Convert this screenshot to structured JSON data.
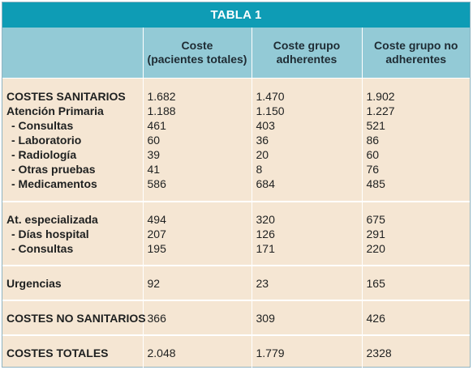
{
  "table": {
    "title": "TABLA 1",
    "headers": [
      "",
      "Coste\n(pacientes totales)",
      "Coste grupo\nadherentes",
      "Coste grupo no\nadherentes"
    ],
    "groups": [
      {
        "labels": [
          "COSTES SANITARIOS",
          "Atención Primaria",
          " - Consultas",
          " - Laboratorio",
          " - Radiología",
          " - Otras pruebas",
          " - Medicamentos"
        ],
        "col1": [
          "1.682",
          "1.188",
          "461",
          "60",
          "39",
          "41",
          "586"
        ],
        "col2": [
          "1.470",
          "1.150",
          "403",
          "36",
          "20",
          "8",
          "684"
        ],
        "col3": [
          "1.902",
          "1.227",
          "521",
          "86",
          "60",
          "76",
          "485"
        ]
      },
      {
        "labels": [
          "At. especializada",
          " - Días hospital",
          " - Consultas"
        ],
        "col1": [
          "494",
          "207",
          "195"
        ],
        "col2": [
          "320",
          "126",
          "171"
        ],
        "col3": [
          "675",
          "291",
          "220"
        ]
      },
      {
        "labels": [
          "Urgencias"
        ],
        "col1": [
          "92"
        ],
        "col2": [
          "23"
        ],
        "col3": [
          "165"
        ]
      },
      {
        "labels": [
          "COSTES NO SANITARIOS"
        ],
        "col1": [
          "366"
        ],
        "col2": [
          "309"
        ],
        "col3": [
          "426"
        ]
      },
      {
        "labels": [
          "COSTES TOTALES"
        ],
        "col1": [
          "2.048"
        ],
        "col2": [
          "1.779"
        ],
        "col3": [
          "2328"
        ]
      }
    ]
  }
}
